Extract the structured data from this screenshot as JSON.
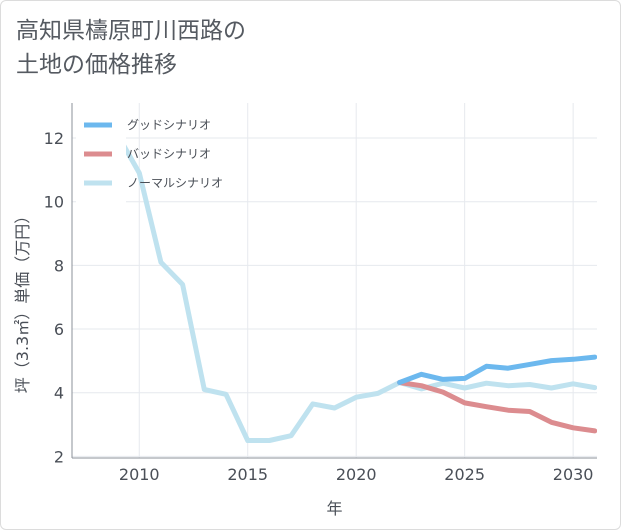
{
  "title_lines": [
    "高知県檮原町川西路の",
    "土地の価格推移"
  ],
  "chart_data": {
    "type": "line",
    "title": "高知県檮原町川西路の土地の価格推移",
    "xlabel": "年",
    "ylabel": "坪（3.3㎡）単価（万円）",
    "xlim": [
      2006.9,
      2031.1
    ],
    "ylim": [
      1.95,
      13.1
    ],
    "xticks": [
      2010,
      2015,
      2020,
      2025,
      2030
    ],
    "yticks": [
      2,
      4,
      6,
      8,
      10,
      12
    ],
    "grid": true,
    "legend_position": "top-left",
    "series": [
      {
        "name": "グッドシナリオ",
        "color": "#6cb8ee",
        "x": [
          2022,
          2023,
          2024,
          2025,
          2026,
          2027,
          2028,
          2029,
          2030,
          2031
        ],
        "y": [
          4.32,
          4.58,
          4.42,
          4.45,
          4.83,
          4.77,
          4.89,
          5.01,
          5.05,
          5.12
        ]
      },
      {
        "name": "バッドシナリオ",
        "color": "#dc8c8f",
        "x": [
          2022,
          2023,
          2024,
          2025,
          2026,
          2027,
          2028,
          2029,
          2030,
          2031
        ],
        "y": [
          4.32,
          4.22,
          4.02,
          3.68,
          3.56,
          3.45,
          3.41,
          3.07,
          2.9,
          2.8
        ]
      },
      {
        "name": "ノーマルシナリオ",
        "color": "#bfe2ef",
        "x": [
          2008,
          2009,
          2010,
          2011,
          2012,
          2013,
          2014,
          2015,
          2016,
          2017,
          2018,
          2019,
          2020,
          2021,
          2022,
          2023,
          2024,
          2025,
          2026,
          2027,
          2028,
          2029,
          2030,
          2031
        ],
        "y": [
          12.4,
          12.1,
          10.9,
          8.1,
          7.4,
          4.1,
          3.95,
          2.5,
          2.5,
          2.65,
          3.65,
          3.52,
          3.86,
          3.98,
          4.32,
          4.12,
          4.3,
          4.15,
          4.3,
          4.22,
          4.26,
          4.15,
          4.28,
          4.16
        ]
      }
    ]
  }
}
